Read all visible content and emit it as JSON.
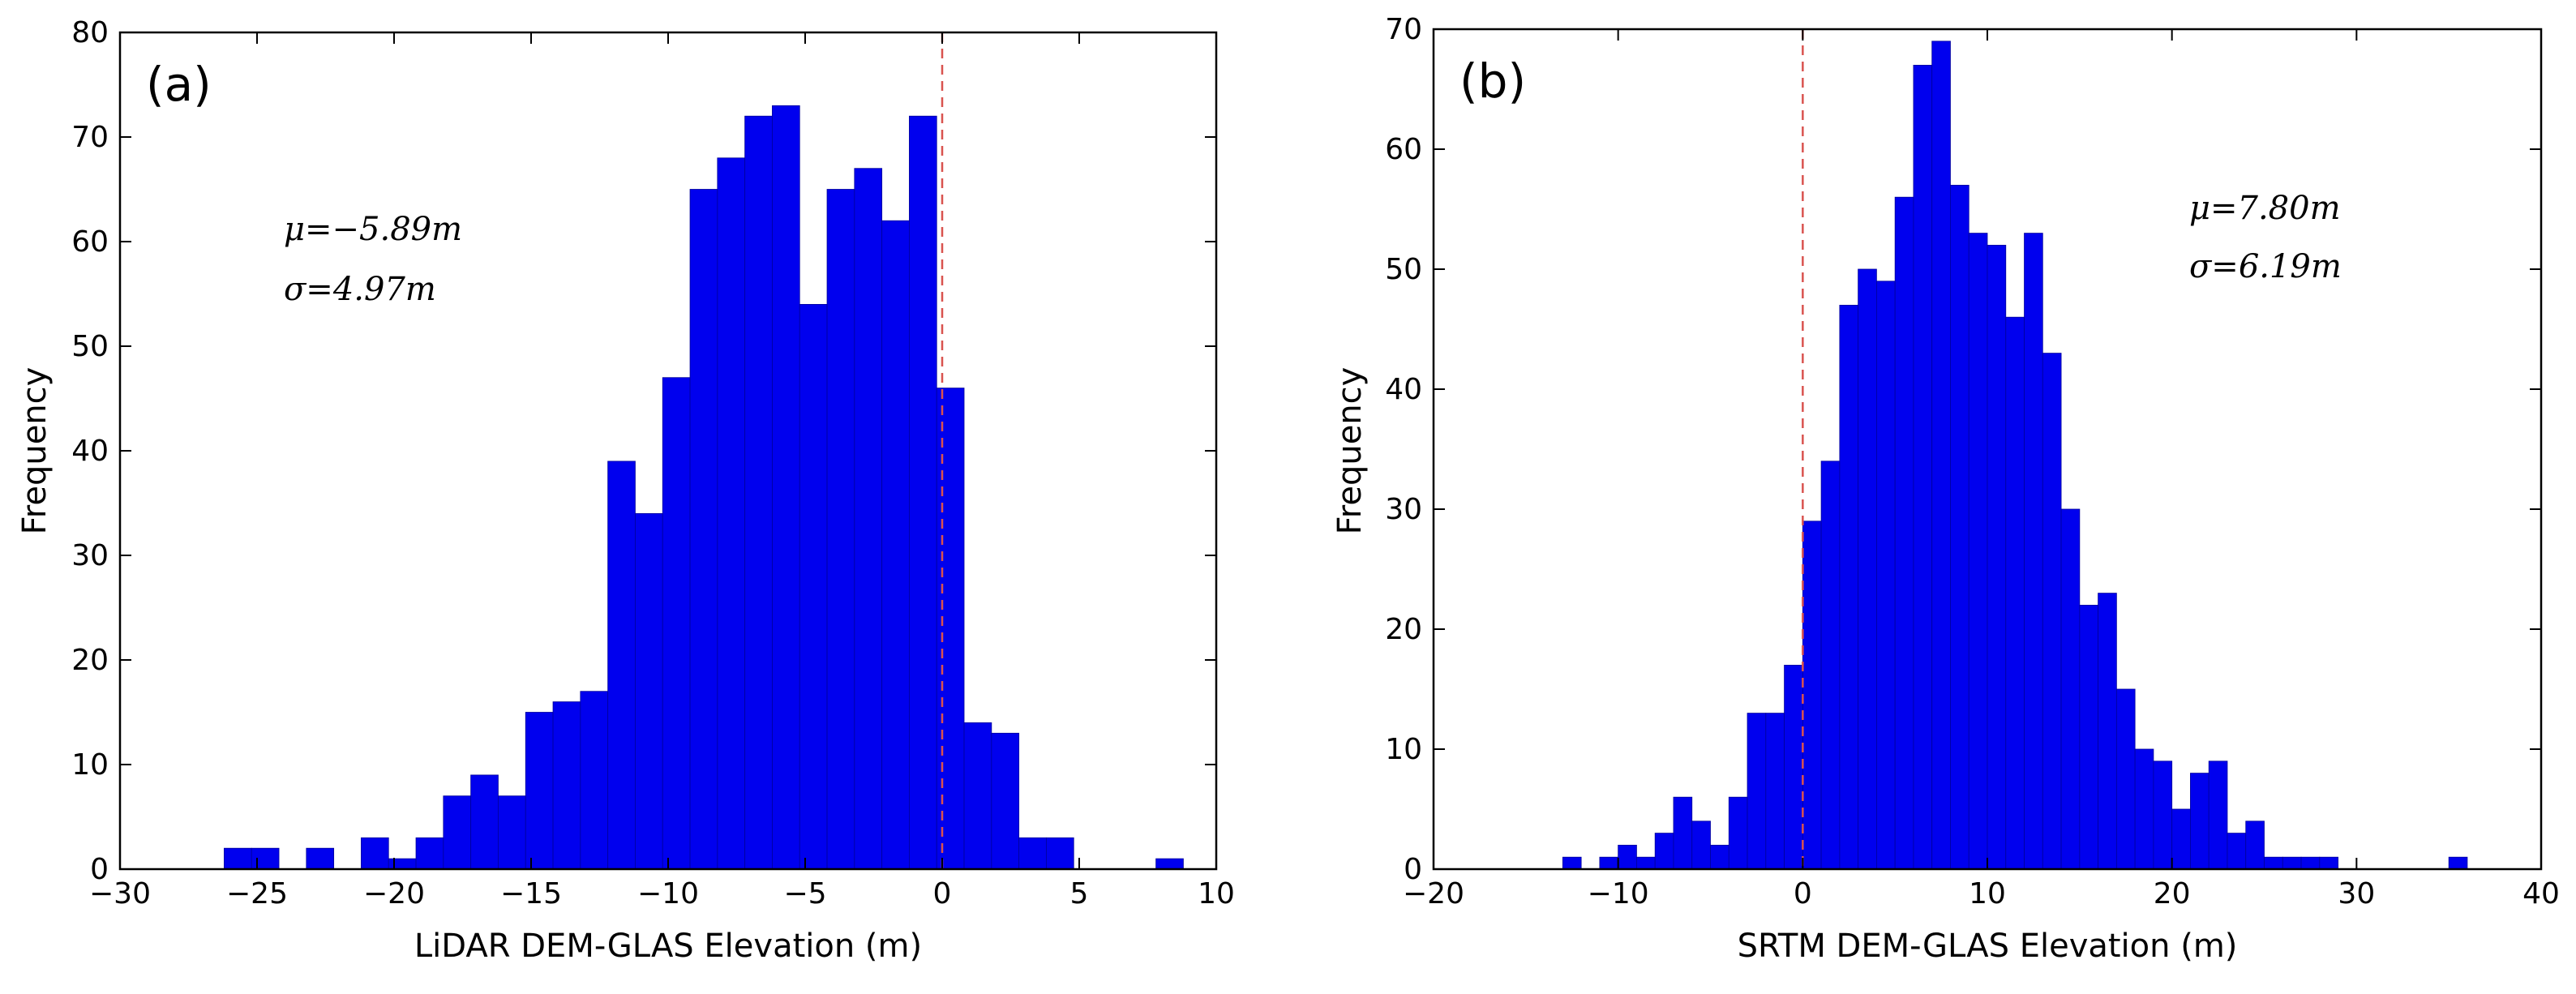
{
  "bar_color": "#0000ee",
  "bar_edge_color": "#00009a",
  "zero_line_color": "#d9534f",
  "chart_data": [
    {
      "type": "bar",
      "panel_label": "(a)",
      "title": "",
      "xlabel": "LiDAR DEM-GLAS Elevation (m)",
      "ylabel": "Frequency",
      "xlim": [
        -30,
        10
      ],
      "ylim": [
        0,
        80
      ],
      "xticks": [
        -30,
        -25,
        -20,
        -15,
        -10,
        -5,
        0,
        5,
        10
      ],
      "xtick_labels": [
        "−30",
        "−25",
        "−20",
        "−15",
        "−10",
        "−5",
        "0",
        "5",
        "10"
      ],
      "yticks": [
        0,
        10,
        20,
        30,
        40,
        50,
        60,
        70,
        80
      ],
      "ytick_labels": [
        "0",
        "10",
        "20",
        "30",
        "40",
        "50",
        "60",
        "70",
        "80"
      ],
      "bin_edges": [
        -26.2,
        -25.2,
        -24.2,
        -23.2,
        -22.2,
        -21.2,
        -20.2,
        -19.2,
        -18.2,
        -17.2,
        -16.2,
        -15.2,
        -14.2,
        -13.2,
        -12.2,
        -11.2,
        -10.2,
        -9.2,
        -8.2,
        -7.2,
        -6.2,
        -5.2,
        -4.2,
        -3.2,
        -2.2,
        -1.2,
        -0.2,
        0.8,
        1.8,
        2.8,
        3.8,
        4.8,
        5.8,
        6.8,
        7.8,
        8.8
      ],
      "values": [
        2,
        2,
        0,
        2,
        0,
        3,
        1,
        3,
        7,
        9,
        7,
        15,
        16,
        17,
        39,
        34,
        47,
        65,
        68,
        72,
        73,
        54,
        65,
        67,
        62,
        72,
        46,
        14,
        13,
        3,
        3,
        0,
        0,
        0,
        1
      ],
      "reference_line_x": 0,
      "mu_label": "μ=−5.89m",
      "sigma_label": "σ=4.97m"
    },
    {
      "type": "bar",
      "panel_label": "(b)",
      "title": "",
      "xlabel": "SRTM DEM-GLAS Elevation (m)",
      "ylabel": "Frequency",
      "xlim": [
        -20,
        40
      ],
      "ylim": [
        0,
        70
      ],
      "xticks": [
        -20,
        -10,
        0,
        10,
        20,
        30,
        40
      ],
      "xtick_labels": [
        "−20",
        "−10",
        "0",
        "10",
        "20",
        "30",
        "40"
      ],
      "yticks": [
        0,
        10,
        20,
        30,
        40,
        50,
        60,
        70
      ],
      "ytick_labels": [
        "0",
        "10",
        "20",
        "30",
        "40",
        "50",
        "60",
        "70"
      ],
      "bin_edges": [
        -13,
        -12,
        -11,
        -10,
        -9,
        -8,
        -7,
        -6,
        -5,
        -4,
        -3,
        -2,
        -1,
        0,
        1,
        2,
        3,
        4,
        5,
        6,
        7,
        8,
        9,
        10,
        11,
        12,
        13,
        14,
        15,
        16,
        17,
        18,
        19,
        20,
        21,
        22,
        23,
        24,
        25,
        26,
        27,
        28,
        29,
        30,
        31,
        32,
        33,
        34,
        35,
        36
      ],
      "values": [
        1,
        0,
        1,
        2,
        1,
        3,
        6,
        4,
        2,
        6,
        13,
        13,
        17,
        29,
        34,
        47,
        50,
        49,
        56,
        67,
        69,
        57,
        53,
        52,
        46,
        53,
        43,
        30,
        22,
        23,
        15,
        10,
        9,
        5,
        8,
        9,
        3,
        4,
        1,
        1,
        1,
        1,
        0,
        0,
        0,
        0,
        0,
        0,
        1
      ],
      "reference_line_x": 0,
      "mu_label": "μ=7.80m",
      "sigma_label": "σ=6.19m"
    }
  ]
}
